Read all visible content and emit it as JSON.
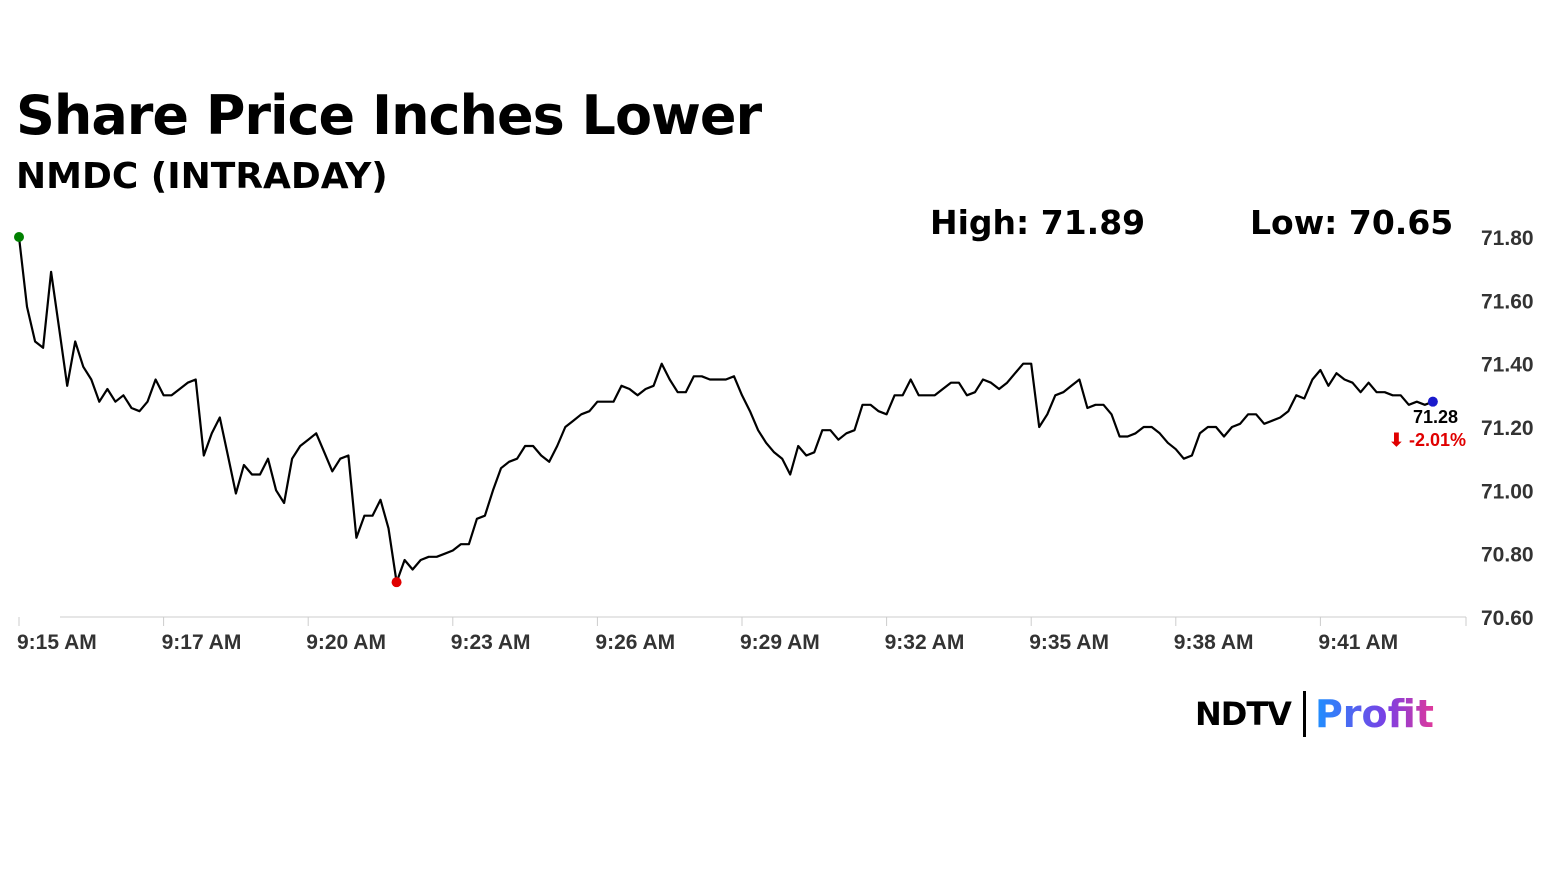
{
  "header": {
    "title": "Share Price Inches Lower",
    "subtitle": "NMDC (INTRADAY)",
    "high_label": "High: 71.89",
    "low_label": "Low: 70.65"
  },
  "logo": {
    "ndtv": "NDTV",
    "profit": "Profit"
  },
  "chart_data": {
    "type": "line",
    "title": "Share Price Inches Lower",
    "subtitle": "NMDC (INTRADAY)",
    "xlabel": "",
    "ylabel": "",
    "x_tick_labels": [
      "9:15 AM",
      "9:17 AM",
      "9:20 AM",
      "9:23 AM",
      "9:26 AM",
      "9:29 AM",
      "9:32 AM",
      "9:35 AM",
      "9:38 AM",
      "9:41 AM"
    ],
    "y_tick_labels": [
      "71.80",
      "71.60",
      "71.40",
      "71.20",
      "71.00",
      "70.80",
      "70.60"
    ],
    "ylim": [
      70.6,
      71.8
    ],
    "grid": false,
    "legend": "none",
    "last_price": "71.28",
    "change": "⬇ -2.01%",
    "colors": {
      "line": "#000000",
      "start_marker": "#008000",
      "low_marker": "#e00000",
      "last_marker": "#1a1acc",
      "change": "#e00000"
    },
    "series": [
      {
        "values": [
          71.8,
          71.58,
          71.47,
          71.45,
          71.69,
          71.51,
          71.33,
          71.47,
          71.39,
          71.35,
          71.28,
          71.32,
          71.28,
          71.3,
          71.26,
          71.25,
          71.28,
          71.35,
          71.3,
          71.3,
          71.32,
          71.34,
          71.35,
          71.11,
          71.18,
          71.23,
          71.11,
          70.99,
          71.08,
          71.05,
          71.05,
          71.1,
          71.0,
          70.96,
          71.1,
          71.14,
          71.16,
          71.18,
          71.12,
          71.06,
          71.1,
          71.11,
          70.85,
          70.92,
          70.92,
          70.97,
          70.88,
          70.71,
          70.78,
          70.75,
          70.78,
          70.79,
          70.79,
          70.8,
          70.81,
          70.83,
          70.83,
          70.91,
          70.92,
          71.0,
          71.07,
          71.09,
          71.1,
          71.14,
          71.14,
          71.11,
          71.09,
          71.14,
          71.2,
          71.22,
          71.24,
          71.25,
          71.28,
          71.28,
          71.28,
          71.33,
          71.32,
          71.3,
          71.32,
          71.33,
          71.4,
          71.35,
          71.31,
          71.31,
          71.36,
          71.36,
          71.35,
          71.35,
          71.35,
          71.36,
          71.3,
          71.25,
          71.19,
          71.15,
          71.12,
          71.1,
          71.05,
          71.14,
          71.11,
          71.12,
          71.19,
          71.19,
          71.16,
          71.18,
          71.19,
          71.27,
          71.27,
          71.25,
          71.24,
          71.3,
          71.3,
          71.35,
          71.3,
          71.3,
          71.3,
          71.32,
          71.34,
          71.34,
          71.3,
          71.31,
          71.35,
          71.34,
          71.32,
          71.34,
          71.37,
          71.4,
          71.4,
          71.2,
          71.24,
          71.3,
          71.31,
          71.33,
          71.35,
          71.26,
          71.27,
          71.27,
          71.24,
          71.17,
          71.17,
          71.18,
          71.2,
          71.2,
          71.18,
          71.15,
          71.13,
          71.1,
          71.11,
          71.18,
          71.2,
          71.2,
          71.17,
          71.2,
          71.21,
          71.24,
          71.24,
          71.21,
          71.22,
          71.23,
          71.25,
          71.3,
          71.29,
          71.35,
          71.38,
          71.33,
          71.37,
          71.35,
          71.34,
          71.31,
          71.34,
          71.31,
          71.31,
          71.3,
          71.3,
          71.27,
          71.28,
          71.27,
          71.28
        ]
      }
    ]
  }
}
